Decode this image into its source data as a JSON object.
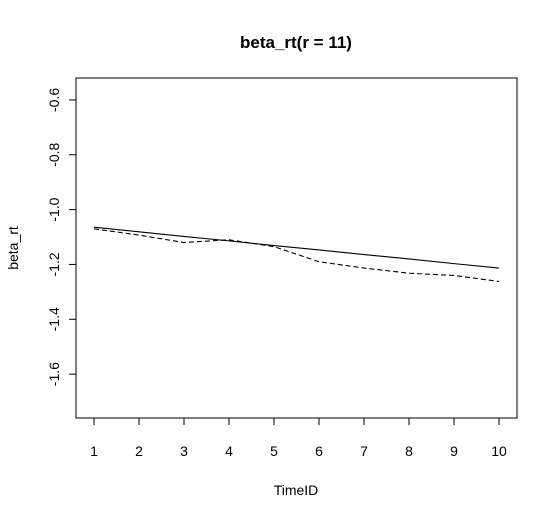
{
  "chart_data": {
    "type": "line",
    "title": "beta_rt(r = 11)",
    "xlabel": "TimeID",
    "ylabel": "beta_rt",
    "xlim": [
      0.6,
      10.4
    ],
    "ylim": [
      -1.76,
      -0.52
    ],
    "x_ticks": [
      "1",
      "2",
      "3",
      "4",
      "5",
      "6",
      "7",
      "8",
      "9",
      "10"
    ],
    "y_ticks": [
      "-0.6",
      "-0.8",
      "-1.0",
      "-1.2",
      "-1.4",
      "-1.6"
    ],
    "grid": false,
    "series": [
      {
        "style": "solid",
        "x": [
          1,
          2,
          3,
          4,
          5,
          6,
          7,
          8,
          9,
          10
        ],
        "y": [
          -1.064,
          -1.081,
          -1.098,
          -1.114,
          -1.131,
          -1.147,
          -1.164,
          -1.18,
          -1.197,
          -1.213
        ]
      },
      {
        "style": "dashed",
        "x": [
          1,
          2,
          3,
          4,
          5,
          6,
          7,
          8,
          9,
          10
        ],
        "y": [
          -1.07,
          -1.093,
          -1.12,
          -1.11,
          -1.135,
          -1.19,
          -1.213,
          -1.232,
          -1.24,
          -1.262
        ]
      }
    ]
  }
}
